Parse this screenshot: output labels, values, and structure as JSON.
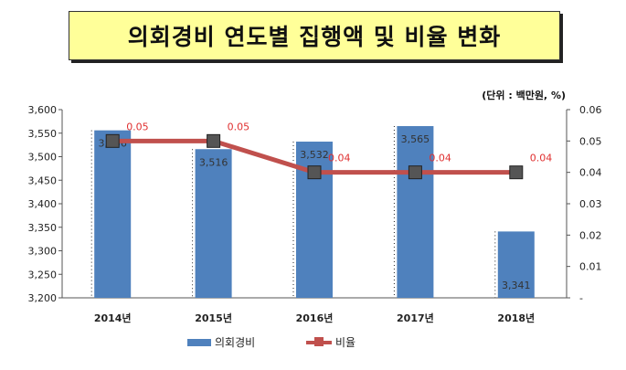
{
  "title": "의회경비 연도별 집행액 및 비율 변화",
  "unit": "(단위 : 백만원, %)",
  "legend": {
    "bar": "의회경비",
    "line": "비율"
  },
  "colors": {
    "bar": "#4f81bd",
    "line": "#c0504d",
    "label_red": "#e03030"
  },
  "chart_data": {
    "type": "bar",
    "categories": [
      "2014년",
      "2015년",
      "2016년",
      "2017년",
      "2018년"
    ],
    "series": [
      {
        "name": "의회경비",
        "type": "bar",
        "axis": "left",
        "values": [
          3556,
          3516,
          3532,
          3565,
          3341
        ],
        "labels": [
          "3,556",
          "3,516",
          "3,532",
          "3,565",
          "3,341"
        ]
      },
      {
        "name": "비율",
        "type": "line",
        "axis": "right",
        "values": [
          0.05,
          0.05,
          0.04,
          0.04,
          0.04
        ],
        "labels": [
          "0.05",
          "0.05",
          "0.04",
          "0.04",
          "0.04"
        ]
      }
    ],
    "left_axis": {
      "ylim": [
        3200,
        3600
      ],
      "ticks": [
        "3,200",
        "3,250",
        "3,300",
        "3,350",
        "3,400",
        "3,450",
        "3,500",
        "3,550",
        "3,600"
      ]
    },
    "right_axis": {
      "ylim": [
        0,
        0.06
      ],
      "ticks": [
        "-",
        "0.01",
        "0.02",
        "0.03",
        "0.04",
        "0.05",
        "0.06"
      ]
    },
    "grid": false,
    "legend_position": "bottom"
  }
}
